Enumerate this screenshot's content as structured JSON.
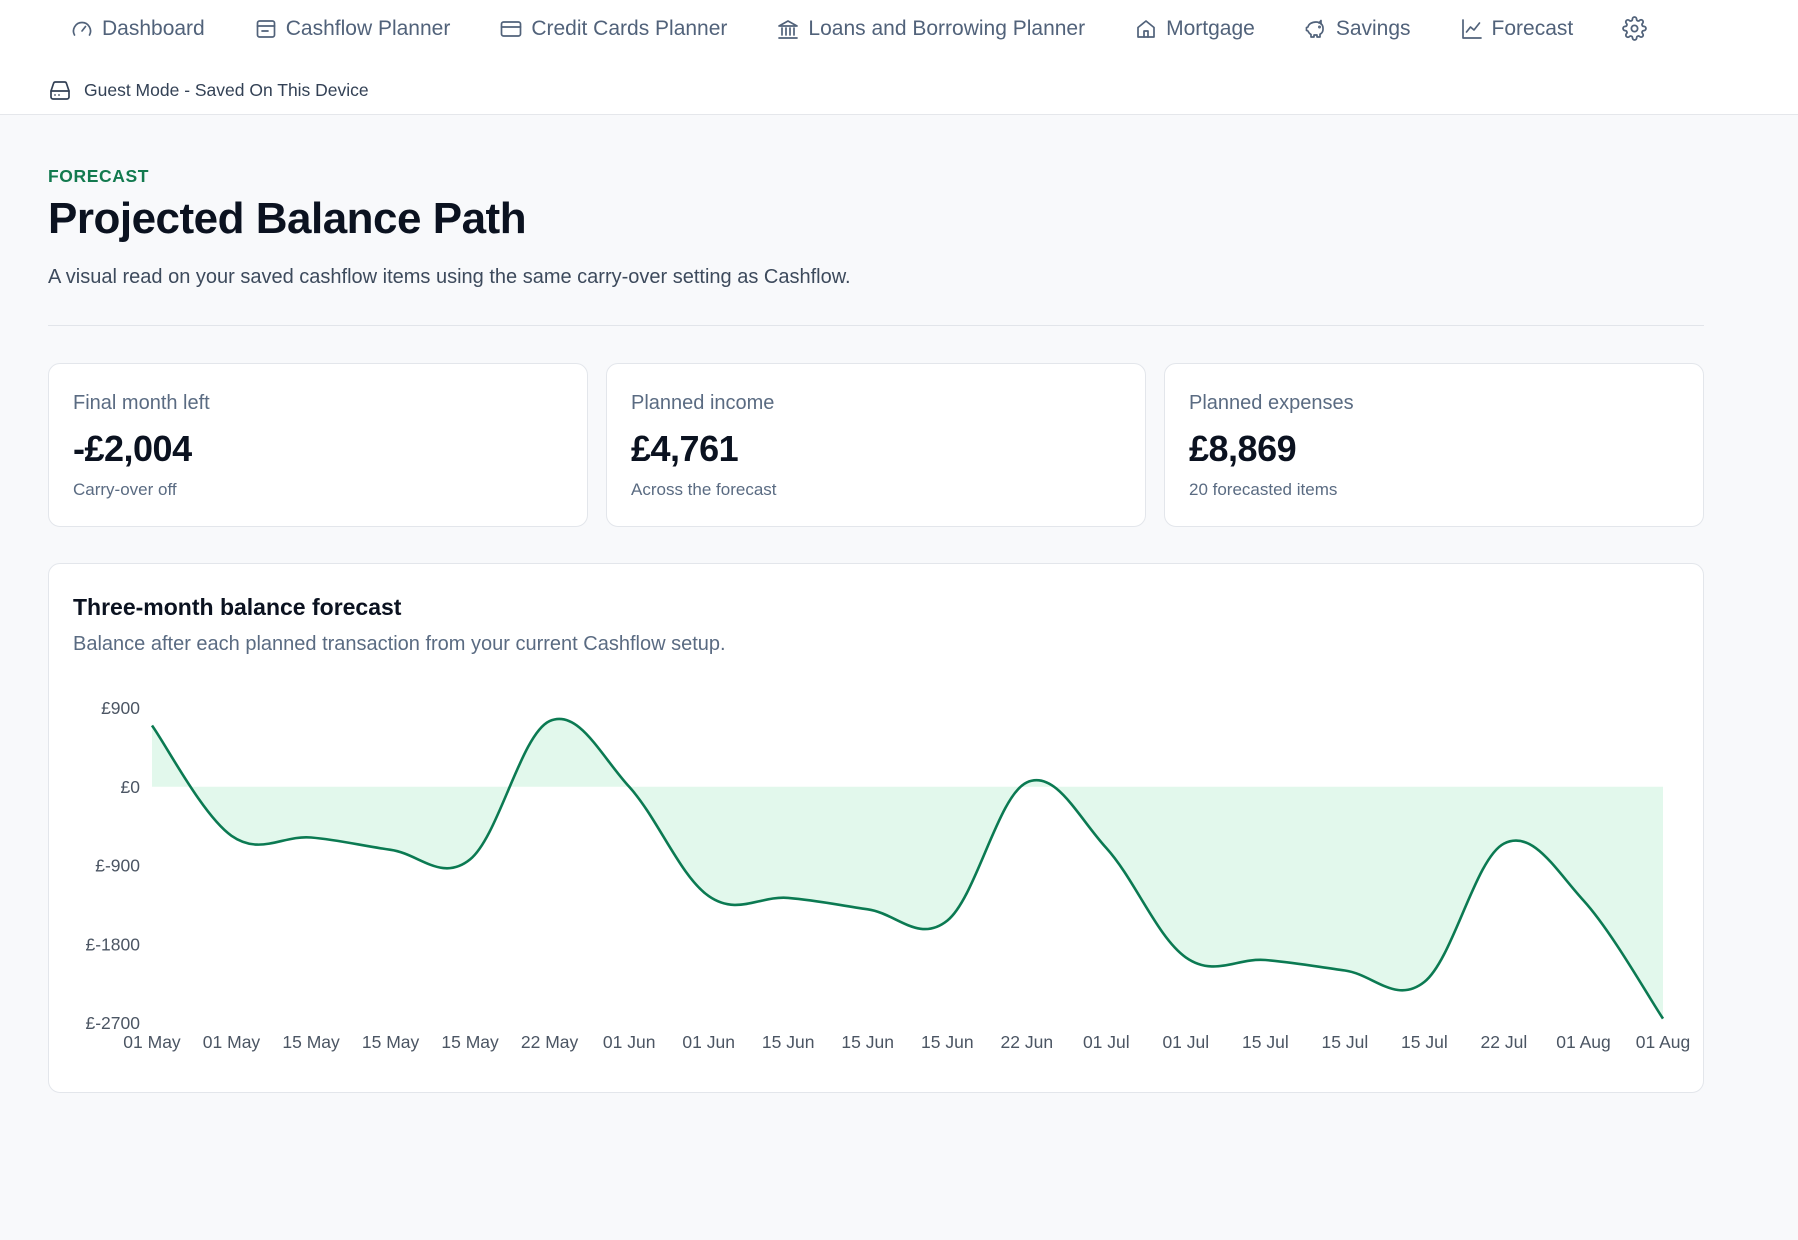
{
  "nav": {
    "items": [
      {
        "label": "Dashboard",
        "icon": "gauge-icon"
      },
      {
        "label": "Cashflow Planner",
        "icon": "wallet-icon"
      },
      {
        "label": "Credit Cards Planner",
        "icon": "credit-card-icon"
      },
      {
        "label": "Loans and Borrowing Planner",
        "icon": "bank-icon"
      },
      {
        "label": "Mortgage",
        "icon": "home-icon"
      },
      {
        "label": "Savings",
        "icon": "piggy-bank-icon"
      },
      {
        "label": "Forecast",
        "icon": "line-chart-icon"
      }
    ],
    "settings_icon": "gear-icon"
  },
  "guest": {
    "label": "Guest Mode - Saved On This Device",
    "icon": "hard-drive-icon"
  },
  "header": {
    "eyebrow": "FORECAST",
    "title": "Projected Balance Path",
    "subtitle": "A visual read on your saved cashflow items using the same carry-over setting as Cashflow."
  },
  "stats": [
    {
      "label": "Final month left",
      "value": "-£2,004",
      "note": "Carry-over off"
    },
    {
      "label": "Planned income",
      "value": "£4,761",
      "note": "Across the forecast"
    },
    {
      "label": "Planned expenses",
      "value": "£8,869",
      "note": "20 forecasted items"
    }
  ],
  "chart": {
    "title": "Three-month balance forecast",
    "subtitle": "Balance after each planned transaction from your current Cashflow setup."
  },
  "colors": {
    "accent": "#137a4f",
    "fill": "#e2f8ec",
    "line": "#0b7a52"
  },
  "chart_data": {
    "type": "area",
    "x": [
      "01 May",
      "01 May",
      "15 May",
      "15 May",
      "15 May",
      "22 May",
      "01 Jun",
      "01 Jun",
      "15 Jun",
      "15 Jun",
      "15 Jun",
      "22 Jun",
      "01 Jul",
      "01 Jul",
      "15 Jul",
      "15 Jul",
      "15 Jul",
      "22 Jul",
      "01 Aug",
      "01 Aug"
    ],
    "series": [
      {
        "values": [
          700,
          -560,
          -580,
          -720,
          -830,
          750,
          0,
          -1250,
          -1270,
          -1400,
          -1530,
          50,
          -700,
          -1950,
          -1980,
          -2100,
          -2230,
          -650,
          -1300,
          -2650
        ]
      }
    ],
    "yticks": [
      "£900",
      "£0",
      "£-900",
      "£-1800",
      "£-2700"
    ],
    "ytick_values": [
      900,
      0,
      -900,
      -1800,
      -2700
    ],
    "ylim": [
      -2700,
      900
    ],
    "grid": false,
    "legend": false
  }
}
